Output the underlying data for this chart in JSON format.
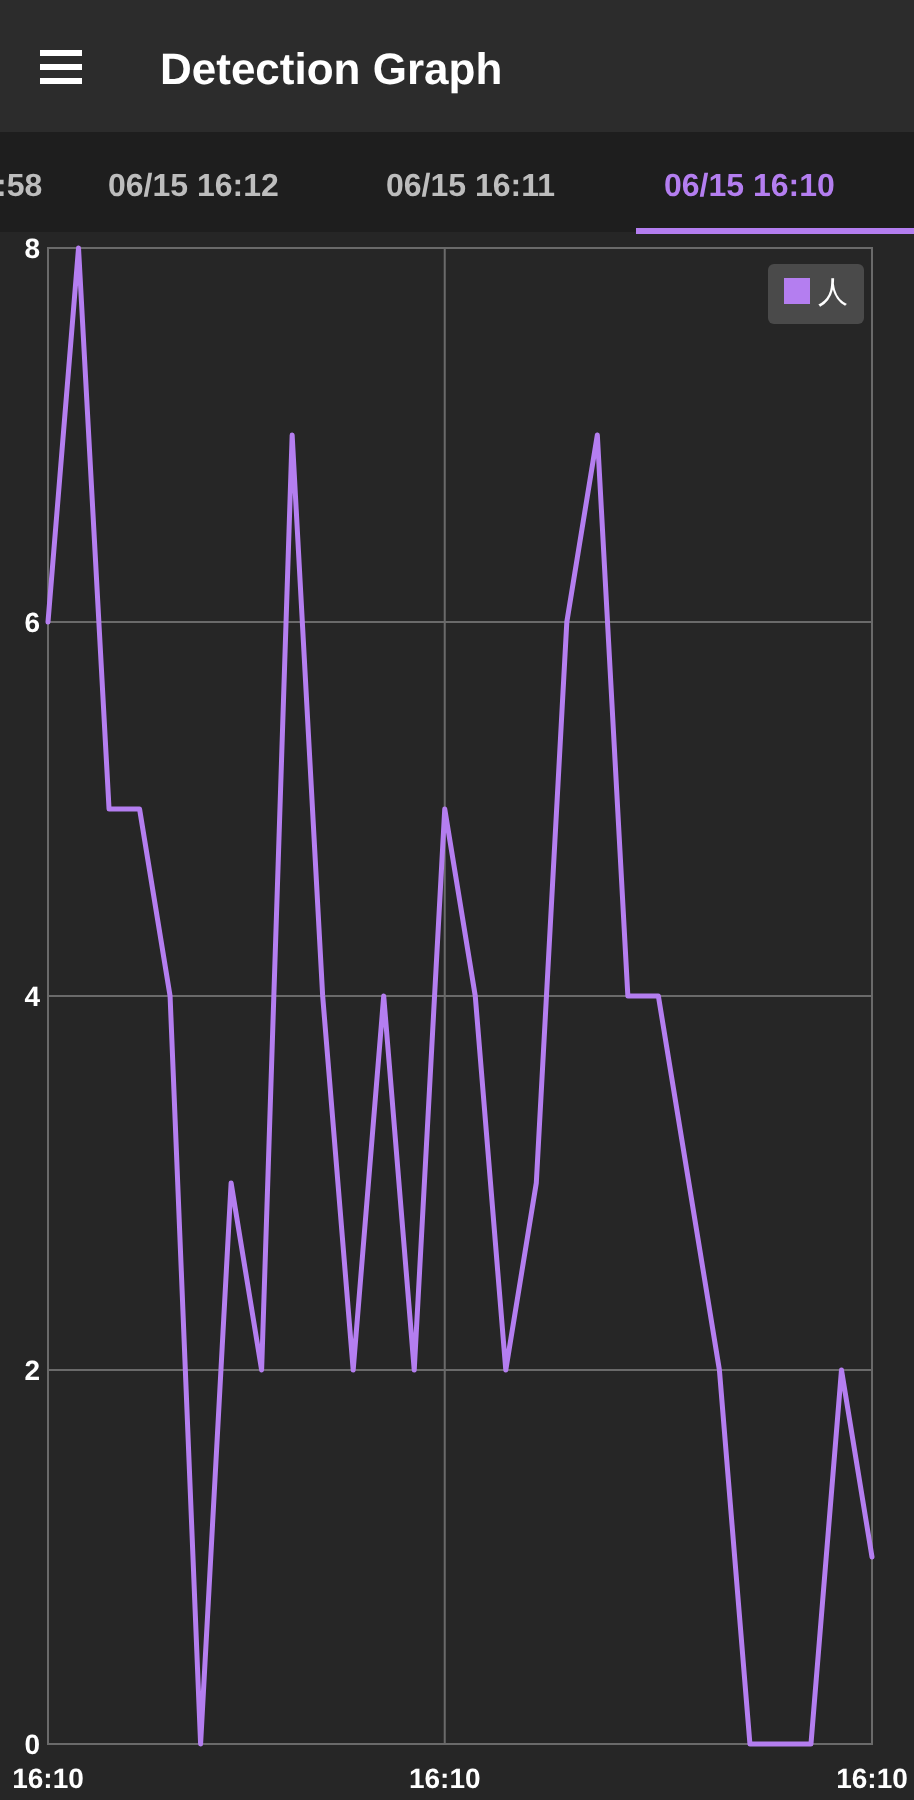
{
  "chart_data": {
    "type": "line",
    "title": "Detection Graph",
    "annotations": [
      ":58",
      "06/15 16:12",
      "06/15 16:11",
      "06/15 16:10"
    ],
    "categories": [
      "16:10",
      null,
      null,
      null,
      null,
      null,
      null,
      null,
      null,
      null,
      null,
      null,
      null,
      "16:10",
      null,
      null,
      null,
      null,
      null,
      null,
      null,
      null,
      null,
      null,
      null,
      null,
      null,
      "16:10"
    ],
    "series": [
      {
        "name": "人",
        "color": "#b47ef0",
        "values": [
          6,
          8,
          5,
          5,
          4,
          0,
          3,
          2,
          7,
          4,
          2,
          4,
          2,
          5,
          4,
          2,
          3,
          6,
          7,
          4,
          4,
          3,
          2,
          0,
          0,
          0,
          2,
          1
        ]
      }
    ],
    "ylim": [
      0,
      8
    ],
    "yticks": [
      0,
      2,
      4,
      6,
      8
    ],
    "grid": true,
    "legend": "top right",
    "marker": "none",
    "line_style": "solid"
  }
}
